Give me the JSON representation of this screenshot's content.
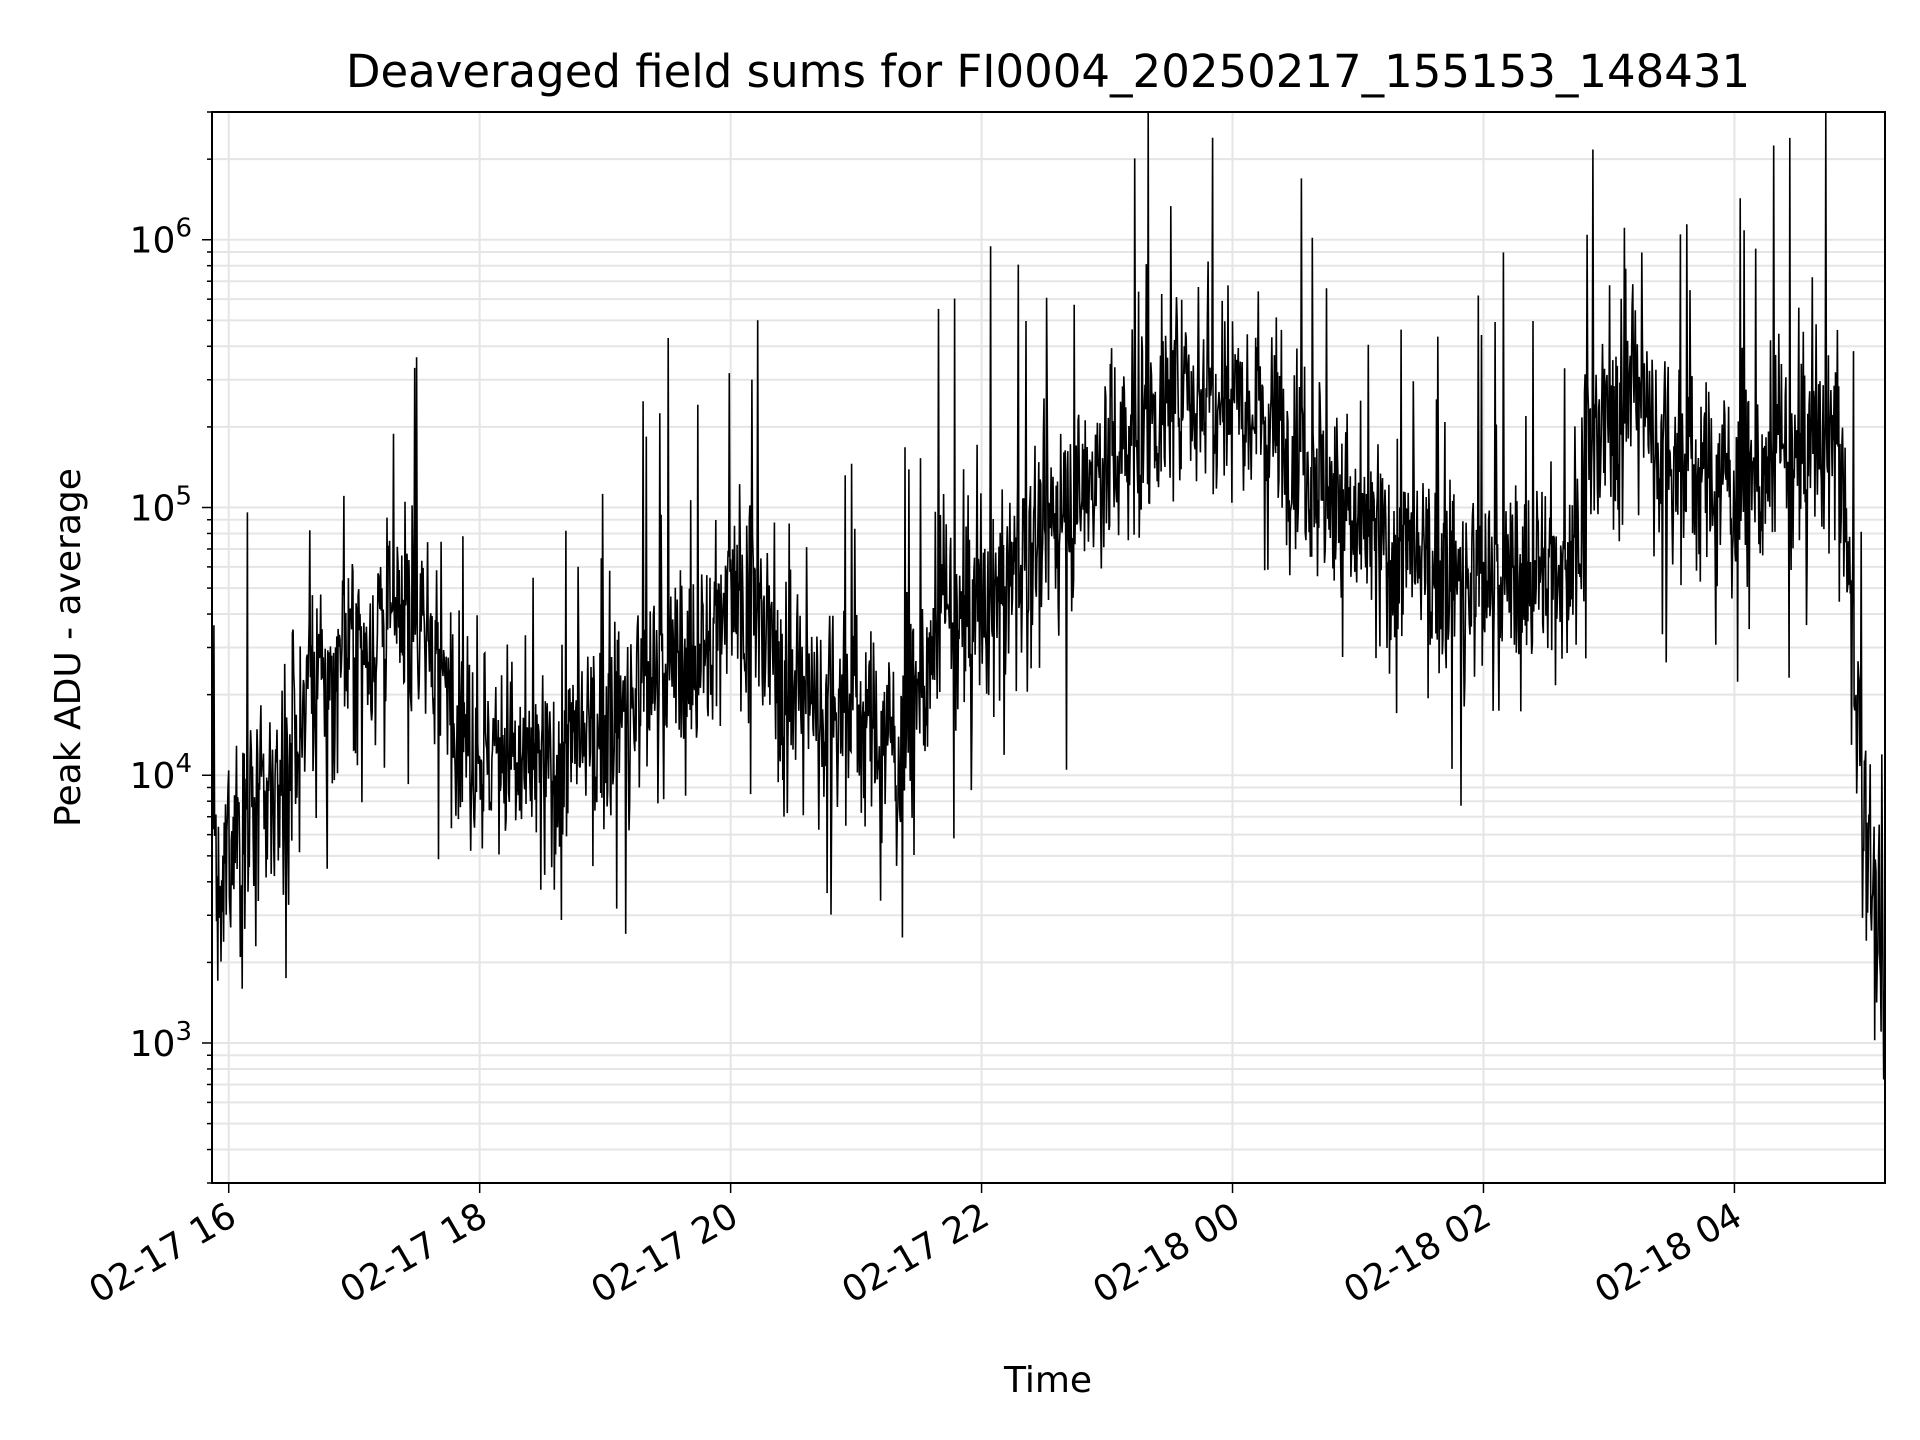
{
  "chart_data": {
    "type": "line",
    "title": "Deaveraged field sums for FI0004_20250217_155153_148431",
    "xlabel": "Time",
    "ylabel": "Peak ADU - average",
    "yscale": "log",
    "ylim": [
      300,
      3000000
    ],
    "xlim": [
      "2025-02-17 15:52",
      "2025-02-18 05:12"
    ],
    "x_ticks": [
      "2025-02-17 16:00",
      "2025-02-17 18:00",
      "2025-02-17 20:00",
      "2025-02-17 22:00",
      "2025-02-18 00:00",
      "2025-02-18 02:00",
      "2025-02-18 04:00"
    ],
    "x_tick_labels": [
      "02-17 16",
      "02-17 18",
      "02-17 20",
      "02-17 22",
      "02-18 00",
      "02-18 02",
      "02-18 04"
    ],
    "y_tick_labels": [
      {
        "value": 1000,
        "base": "10",
        "exp": "3"
      },
      {
        "value": 10000,
        "base": "10",
        "exp": "4"
      },
      {
        "value": 100000,
        "base": "10",
        "exp": "5"
      },
      {
        "value": 1000000,
        "base": "10",
        "exp": "6"
      }
    ],
    "grid": true,
    "grid_minor": true,
    "line_color": "#000000",
    "grid_color": "#e5e5e5",
    "series": [
      {
        "x": [
          "2025-02-17 15:52",
          "2025-02-17 15:55",
          "2025-02-17 16:00",
          "2025-02-17 16:20",
          "2025-02-17 16:40",
          "2025-02-17 17:00",
          "2025-02-17 17:30",
          "2025-02-17 18:00",
          "2025-02-17 18:30",
          "2025-02-17 19:00",
          "2025-02-17 19:30",
          "2025-02-17 19:50",
          "2025-02-17 20:00",
          "2025-02-17 20:30",
          "2025-02-17 21:00",
          "2025-02-17 21:20",
          "2025-02-17 21:40",
          "2025-02-17 22:00",
          "2025-02-17 22:30",
          "2025-02-17 23:00",
          "2025-02-17 23:30",
          "2025-02-18 00:00",
          "2025-02-18 00:30",
          "2025-02-18 01:00",
          "2025-02-18 01:30",
          "2025-02-18 02:00",
          "2025-02-18 02:40",
          "2025-02-18 02:50",
          "2025-02-18 03:10",
          "2025-02-18 03:30",
          "2025-02-18 04:00",
          "2025-02-18 04:30",
          "2025-02-18 04:50",
          "2025-02-18 05:00",
          "2025-02-18 05:12"
        ],
        "y": [
          20000,
          2000,
          6000,
          8000,
          20000,
          30000,
          40000,
          12000,
          10000,
          15000,
          25000,
          28000,
          60000,
          20000,
          18000,
          12000,
          35000,
          40000,
          80000,
          150000,
          250000,
          300000,
          180000,
          80000,
          60000,
          50000,
          60000,
          150000,
          300000,
          150000,
          120000,
          150000,
          200000,
          12000,
          1200
        ]
      }
    ]
  }
}
